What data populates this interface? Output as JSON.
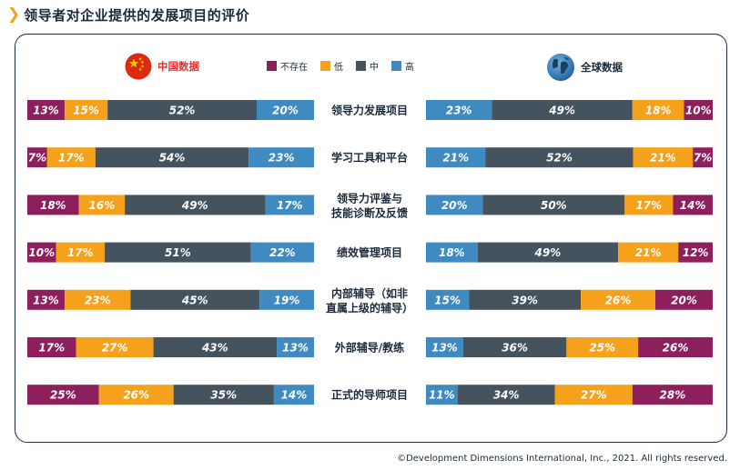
{
  "title": "领导者对企业提供的发展项目的评价",
  "footer": "©Development Dimensions International, Inc., 2021. All rights reserved.",
  "colors": {
    "none": "#8d1f5c",
    "low": "#f5a11c",
    "mid": "#45535f",
    "high": "#3f8ac1"
  },
  "panels": {
    "left": {
      "label": "中国数据",
      "icon": "china-flag-icon"
    },
    "right": {
      "label": "全球数据",
      "icon": "globe-icon"
    }
  },
  "legend": [
    {
      "key": "none",
      "label": "不存在"
    },
    {
      "key": "low",
      "label": "低"
    },
    {
      "key": "mid",
      "label": "中"
    },
    {
      "key": "high",
      "label": "高"
    }
  ],
  "chart_data": {
    "type": "bar",
    "stacked": true,
    "orientation": "horizontal",
    "unit": "%",
    "categories": [
      [
        "领导力发展项目"
      ],
      [
        "学习工具和平台"
      ],
      [
        "领导力评鉴与",
        "技能诊断及反馈"
      ],
      [
        "绩效管理项目"
      ],
      [
        "内部辅导（如非",
        "直属上级的辅导）"
      ],
      [
        "外部辅导/教练"
      ],
      [
        "正式的导师项目"
      ]
    ],
    "china": {
      "label": "中国数据",
      "segment_order": [
        "none",
        "low",
        "mid",
        "high"
      ],
      "series": [
        {
          "key": "none",
          "name": "不存在",
          "values": [
            13,
            7,
            18,
            10,
            13,
            17,
            25
          ]
        },
        {
          "key": "low",
          "name": "低",
          "values": [
            15,
            17,
            16,
            17,
            23,
            27,
            26
          ]
        },
        {
          "key": "mid",
          "name": "中",
          "values": [
            52,
            54,
            49,
            51,
            45,
            43,
            35
          ]
        },
        {
          "key": "high",
          "name": "高",
          "values": [
            20,
            23,
            17,
            22,
            19,
            13,
            14
          ]
        }
      ]
    },
    "global": {
      "label": "全球数据",
      "segment_order": [
        "high",
        "mid",
        "low",
        "none"
      ],
      "series": [
        {
          "key": "high",
          "name": "高",
          "values": [
            23,
            21,
            20,
            18,
            15,
            13,
            11
          ]
        },
        {
          "key": "mid",
          "name": "中",
          "values": [
            49,
            52,
            50,
            49,
            39,
            36,
            34
          ]
        },
        {
          "key": "low",
          "name": "低",
          "values": [
            18,
            21,
            17,
            21,
            26,
            25,
            27
          ]
        },
        {
          "key": "none",
          "name": "不存在",
          "values": [
            10,
            7,
            14,
            12,
            20,
            26,
            28
          ]
        }
      ]
    }
  }
}
